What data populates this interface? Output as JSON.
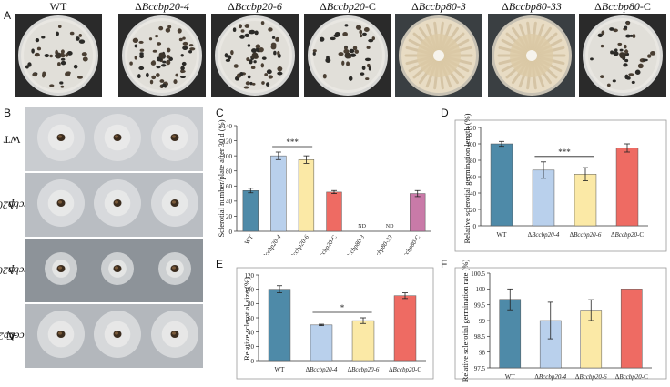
{
  "panel_letters": {
    "A": "A",
    "B": "B",
    "C": "C",
    "D": "D",
    "E": "E",
    "F": "F"
  },
  "panel_a": {
    "plates": [
      {
        "label": "WT",
        "kind": "sclerotia"
      },
      {
        "label": "ΔBccbp20-4",
        "kind": "sclerotia"
      },
      {
        "label": "ΔBccbp20-6",
        "kind": "sclerotia"
      },
      {
        "label": "ΔBccbp20-C",
        "kind": "sclerotia"
      },
      {
        "label": "ΔBccbp80-3",
        "kind": "mycelium"
      },
      {
        "label": "ΔBccbp80-33",
        "kind": "mycelium"
      },
      {
        "label": "ΔBccbp80-C",
        "kind": "sclerotia"
      }
    ]
  },
  "panel_b": {
    "rows": [
      {
        "label": "WT"
      },
      {
        "label": "ΔBccbp20-4"
      },
      {
        "label": "ΔBccbp20-6"
      },
      {
        "label": "ΔBccbp20-C"
      }
    ]
  },
  "chart_data": [
    {
      "id": "C",
      "type": "bar",
      "ylabel": "Sclerotial number/plate after 30 d (%)",
      "ylim": [
        0,
        140
      ],
      "yticks": [
        0,
        20,
        40,
        60,
        80,
        100,
        120,
        140
      ],
      "categories": [
        "WT",
        "ΔBccbp20-4",
        "ΔBccbp20-6",
        "ΔBccbp20-C",
        "ΔBccbp80-3",
        "ΔBccbp80-33",
        "ΔBccbp80-C"
      ],
      "values": [
        54,
        100,
        95,
        52,
        0,
        0,
        50
      ],
      "errors": [
        3,
        5,
        5,
        2,
        0,
        0,
        4
      ],
      "colors": [
        "#4e8aa8",
        "#b9d0ec",
        "#fbe9a6",
        "#ee6b63",
        "#ffffff",
        "#ffffff",
        "#c97aa8"
      ],
      "annotations": [
        {
          "text": "ND",
          "index": 4
        },
        {
          "text": "ND",
          "index": 5
        }
      ],
      "significance": [
        {
          "text": "***",
          "from": 1,
          "to": 2
        }
      ]
    },
    {
      "id": "D",
      "type": "bar",
      "ylabel": "Relative sclerotial germination length (%)",
      "ylim": [
        0,
        120
      ],
      "yticks": [
        0,
        20,
        40,
        60,
        80,
        100,
        120
      ],
      "categories": [
        "WT",
        "ΔBccbp20-4",
        "ΔBccbp20-6",
        "ΔBccbp20-C"
      ],
      "values": [
        100,
        68,
        63,
        95
      ],
      "errors": [
        3,
        10,
        8,
        5
      ],
      "colors": [
        "#4e8aa8",
        "#b9d0ec",
        "#fbe9a6",
        "#ee6b63"
      ],
      "annotations": [],
      "significance": [
        {
          "text": "***",
          "from": 1,
          "to": 2
        }
      ]
    },
    {
      "id": "E",
      "type": "bar",
      "ylabel": "Relative sclerotial size (%)",
      "ylim": [
        0,
        120
      ],
      "yticks": [
        0,
        20,
        40,
        60,
        80,
        100,
        120
      ],
      "categories": [
        "WT",
        "ΔBccbp20-4",
        "ΔBccbp20-6",
        "ΔBccbp20-C"
      ],
      "values": [
        100,
        50,
        56,
        91
      ],
      "errors": [
        5,
        1,
        4,
        4
      ],
      "colors": [
        "#4e8aa8",
        "#b9d0ec",
        "#fbe9a6",
        "#ee6b63"
      ],
      "annotations": [],
      "significance": [
        {
          "text": "*",
          "from": 1,
          "to": 2
        }
      ]
    },
    {
      "id": "F",
      "type": "bar",
      "ylabel": "Relative sclerotial germination rate (%)",
      "ylim": [
        97.5,
        100.5
      ],
      "yticks": [
        97.5,
        98,
        98.5,
        99,
        99.5,
        100,
        100.5
      ],
      "categories": [
        "WT",
        "ΔBccbp20-4",
        "ΔBccbp20-6",
        "ΔBccbp20-C"
      ],
      "values": [
        99.67,
        99.0,
        99.33,
        100.0
      ],
      "errors": [
        0.33,
        0.58,
        0.33,
        0
      ],
      "colors": [
        "#4e8aa8",
        "#b9d0ec",
        "#fbe9a6",
        "#ee6b63"
      ],
      "annotations": [],
      "significance": []
    }
  ]
}
